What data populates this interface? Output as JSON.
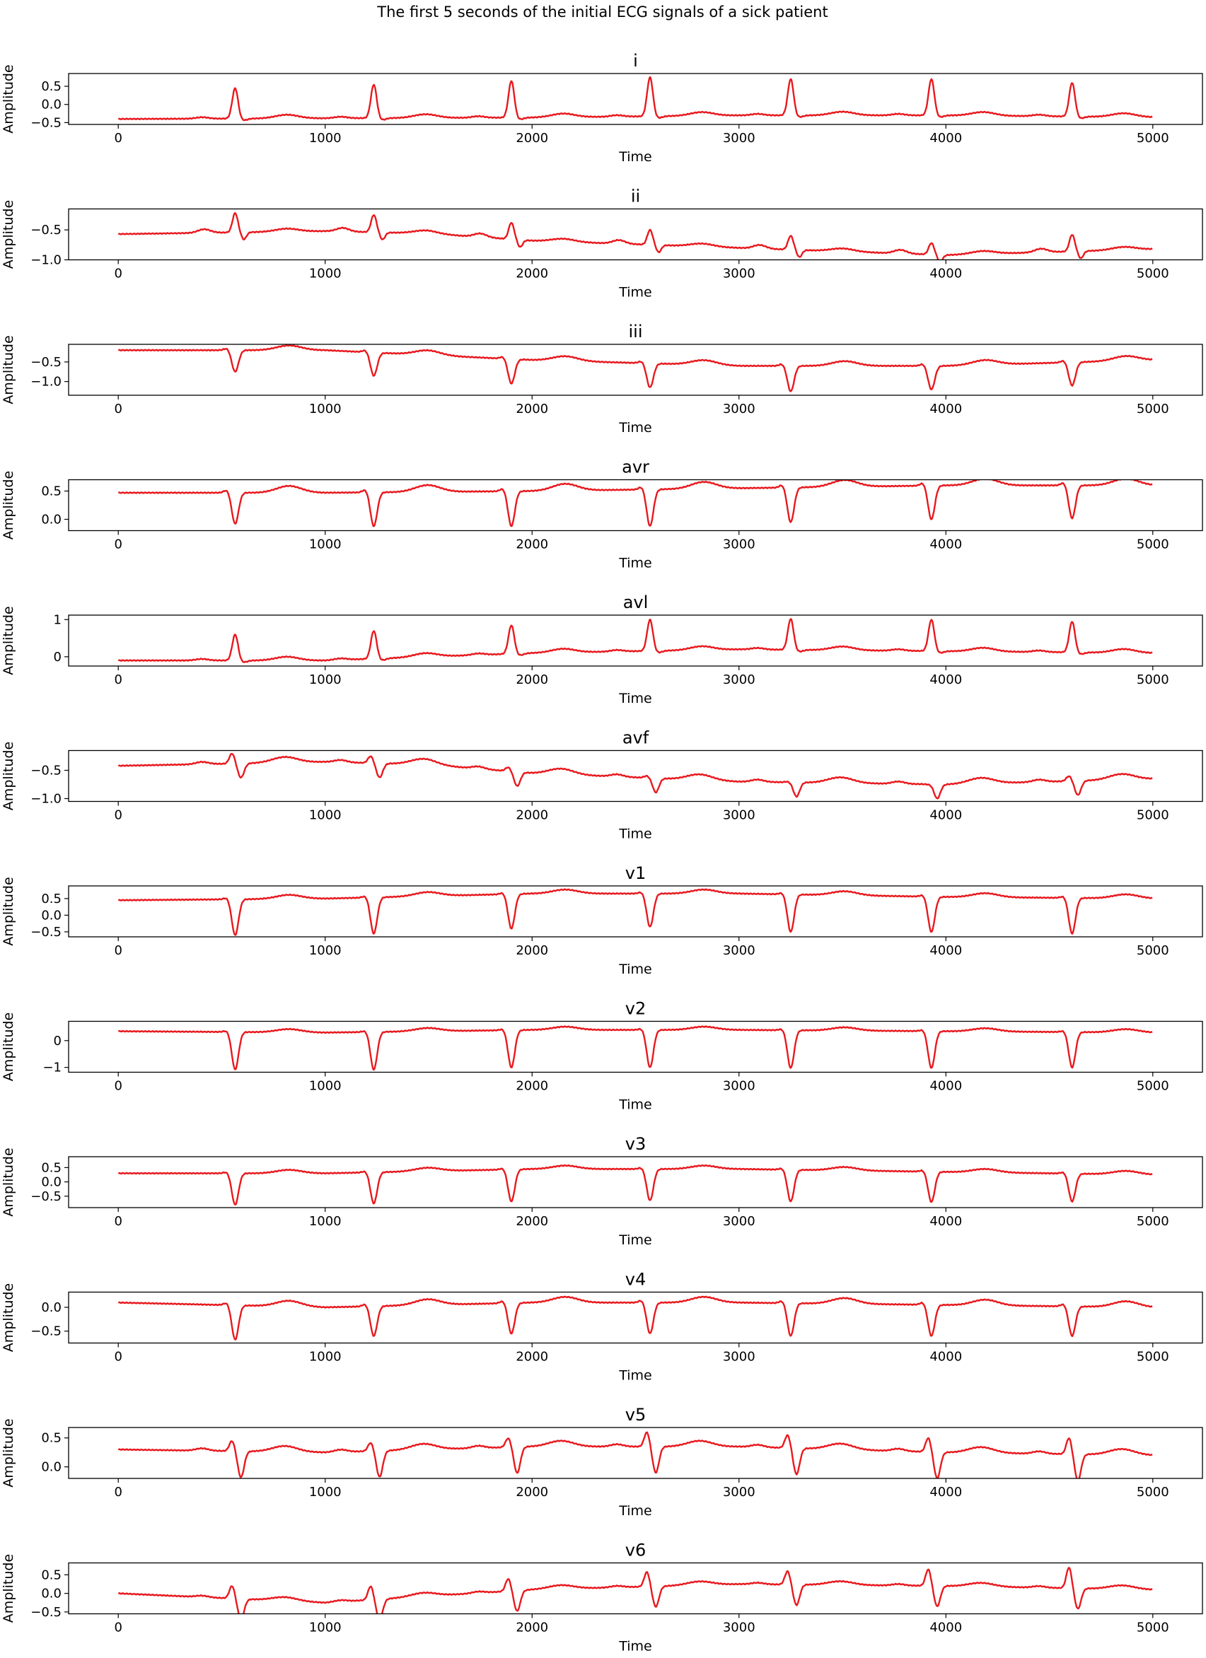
{
  "chart_data": {
    "type": "line",
    "title": "The first 5 seconds of the initial ECG signals of a sick patient",
    "xlabel": "Time",
    "ylabel": "Amplitude",
    "xlim": [
      -240,
      5240
    ],
    "xticks": [
      0,
      1000,
      2000,
      3000,
      4000,
      5000
    ],
    "line_color": "#e8191e",
    "grid": false,
    "beat_times": [
      565,
      1235,
      1900,
      2570,
      3250,
      3930,
      4610
    ],
    "panels": [
      {
        "name": "i",
        "ylim": [
          -0.55,
          0.85
        ],
        "yticks": [
          -0.5,
          0.0,
          0.5
        ],
        "ytick_labels": [
          "−0.5",
          "0.0",
          "0.5"
        ],
        "shape": "upspike",
        "amp": 0.82,
        "neg": 0.05,
        "baseline": {
          "x": [
            0,
            1000,
            2000,
            3000,
            4000,
            5000
          ],
          "y": [
            -0.4,
            -0.38,
            -0.36,
            -0.3,
            -0.3,
            -0.35
          ]
        },
        "peaks": [
          0.45,
          0.55,
          0.65,
          0.75,
          0.7,
          0.7,
          0.6
        ]
      },
      {
        "name": "ii",
        "ylim": [
          -1.0,
          -0.15
        ],
        "yticks": [
          -1.0,
          -0.5
        ],
        "ytick_labels": [
          "−1.0",
          "−0.5"
        ],
        "shape": "smallup",
        "amp": 0.35,
        "neg": 0.12,
        "baseline": {
          "x": [
            0,
            1000,
            1500,
            2000,
            3000,
            4000,
            5000
          ],
          "y": [
            -0.57,
            -0.52,
            -0.56,
            -0.68,
            -0.8,
            -0.92,
            -0.82
          ]
        },
        "peaks": [
          -0.22,
          -0.25,
          -0.38,
          -0.5,
          -0.6,
          -0.72,
          -0.58
        ]
      },
      {
        "name": "iii",
        "ylim": [
          -1.35,
          -0.05
        ],
        "yticks": [
          -1.0,
          -0.5
        ],
        "ytick_labels": [
          "−1.0",
          "−0.5"
        ],
        "shape": "downspike",
        "amp": 0.6,
        "neg": 0.6,
        "baseline": {
          "x": [
            0,
            1000,
            2000,
            3000,
            4000,
            5000
          ],
          "y": [
            -0.2,
            -0.2,
            -0.45,
            -0.6,
            -0.6,
            -0.45
          ]
        },
        "peaks": [
          -0.75,
          -0.85,
          -1.05,
          -1.15,
          -1.25,
          -1.2,
          -1.1
        ]
      },
      {
        "name": "avr",
        "ylim": [
          -0.2,
          0.7
        ],
        "yticks": [
          0.0,
          0.5
        ],
        "ytick_labels": [
          "0.0",
          "0.5"
        ],
        "shape": "downspike",
        "amp": 0.5,
        "neg": 0.5,
        "baseline": {
          "x": [
            0,
            1000,
            2000,
            3000,
            4000,
            5000
          ],
          "y": [
            0.47,
            0.47,
            0.5,
            0.55,
            0.6,
            0.6
          ]
        },
        "peaks": [
          -0.08,
          -0.12,
          -0.12,
          -0.12,
          -0.05,
          0.0,
          0.02
        ]
      },
      {
        "name": "avl",
        "ylim": [
          -0.25,
          1.12
        ],
        "yticks": [
          0,
          1
        ],
        "ytick_labels": [
          "0",
          "1"
        ],
        "shape": "upspike",
        "amp": 0.9,
        "neg": 0.05,
        "baseline": {
          "x": [
            0,
            1000,
            2000,
            3000,
            4000,
            5000
          ],
          "y": [
            -0.1,
            -0.1,
            0.1,
            0.2,
            0.15,
            0.1
          ]
        },
        "peaks": [
          0.6,
          0.7,
          0.85,
          1.0,
          1.02,
          1.0,
          0.95
        ]
      },
      {
        "name": "avf",
        "ylim": [
          -1.05,
          -0.15
        ],
        "yticks": [
          -1.0,
          -0.5
        ],
        "ytick_labels": [
          "−1.0",
          "−0.5"
        ],
        "shape": "biphasic",
        "amp": 0.2,
        "neg": 0.25,
        "baseline": {
          "x": [
            0,
            1000,
            1500,
            2000,
            3000,
            4000,
            5000
          ],
          "y": [
            -0.42,
            -0.35,
            -0.4,
            -0.55,
            -0.7,
            -0.75,
            -0.65
          ]
        },
        "peaks": [
          -0.2,
          -0.25,
          -0.45,
          -0.6,
          -0.7,
          -0.75,
          -0.6
        ]
      },
      {
        "name": "v1",
        "ylim": [
          -0.65,
          0.88
        ],
        "yticks": [
          -0.5,
          0.0,
          0.5
        ],
        "ytick_labels": [
          "−0.5",
          "0.0",
          "0.5"
        ],
        "shape": "downspike",
        "amp": 0.8,
        "neg": 0.8,
        "baseline": {
          "x": [
            0,
            1000,
            2000,
            3000,
            4000,
            5000
          ],
          "y": [
            0.45,
            0.5,
            0.65,
            0.65,
            0.55,
            0.5
          ]
        },
        "peaks": [
          -0.6,
          -0.55,
          -0.4,
          -0.35,
          -0.5,
          -0.5,
          -0.55
        ]
      },
      {
        "name": "v2",
        "ylim": [
          -1.18,
          0.72
        ],
        "yticks": [
          -1,
          0
        ],
        "ytick_labels": [
          "−1",
          "0"
        ],
        "shape": "downspike",
        "amp": 1.2,
        "neg": 1.2,
        "baseline": {
          "x": [
            0,
            1000,
            2000,
            3000,
            4000,
            5000
          ],
          "y": [
            0.35,
            0.3,
            0.4,
            0.4,
            0.35,
            0.3
          ]
        },
        "peaks": [
          -1.08,
          -1.08,
          -1.0,
          -1.0,
          -1.02,
          -1.02,
          -1.0
        ]
      },
      {
        "name": "v3",
        "ylim": [
          -0.9,
          0.88
        ],
        "yticks": [
          -0.5,
          0.0,
          0.5
        ],
        "ytick_labels": [
          "−0.5",
          "0.0",
          "0.5"
        ],
        "shape": "downspike",
        "amp": 1.0,
        "neg": 1.0,
        "baseline": {
          "x": [
            0,
            1000,
            2000,
            3000,
            4000,
            5000
          ],
          "y": [
            0.3,
            0.3,
            0.45,
            0.45,
            0.35,
            0.25
          ]
        },
        "peaks": [
          -0.8,
          -0.75,
          -0.68,
          -0.65,
          -0.68,
          -0.7,
          -0.68
        ]
      },
      {
        "name": "v4",
        "ylim": [
          -0.75,
          0.32
        ],
        "yticks": [
          -0.5,
          0.0
        ],
        "ytick_labels": [
          "−0.5",
          "0.0"
        ],
        "shape": "downspike",
        "amp": 0.7,
        "neg": 0.7,
        "baseline": {
          "x": [
            0,
            1000,
            2000,
            3000,
            4000,
            5000
          ],
          "y": [
            0.1,
            0.0,
            0.1,
            0.1,
            0.05,
            0.0
          ]
        },
        "peaks": [
          -0.68,
          -0.6,
          -0.55,
          -0.55,
          -0.6,
          -0.6,
          -0.6
        ]
      },
      {
        "name": "v5",
        "ylim": [
          -0.2,
          0.68
        ],
        "yticks": [
          0.0,
          0.5
        ],
        "ytick_labels": [
          "0.0",
          "0.5"
        ],
        "shape": "biphasic",
        "amp": 0.45,
        "neg": 0.45,
        "baseline": {
          "x": [
            0,
            1000,
            2000,
            3000,
            4000,
            5000
          ],
          "y": [
            0.3,
            0.25,
            0.35,
            0.35,
            0.25,
            0.2
          ]
        },
        "peaks": [
          0.45,
          0.42,
          0.5,
          0.6,
          0.55,
          0.5,
          0.5
        ]
      },
      {
        "name": "v6",
        "ylim": [
          -0.55,
          0.82
        ],
        "yticks": [
          -0.5,
          0.0,
          0.5
        ],
        "ytick_labels": [
          "−0.5",
          "0.0",
          "0.5"
        ],
        "shape": "biphasic",
        "amp": 0.45,
        "neg": 0.55,
        "baseline": {
          "x": [
            0,
            1000,
            2000,
            3000,
            4000,
            5000
          ],
          "y": [
            0.0,
            -0.25,
            0.1,
            0.25,
            0.2,
            0.1
          ]
        },
        "peaks": [
          0.2,
          0.2,
          0.4,
          0.58,
          0.6,
          0.65,
          0.7
        ]
      }
    ]
  }
}
